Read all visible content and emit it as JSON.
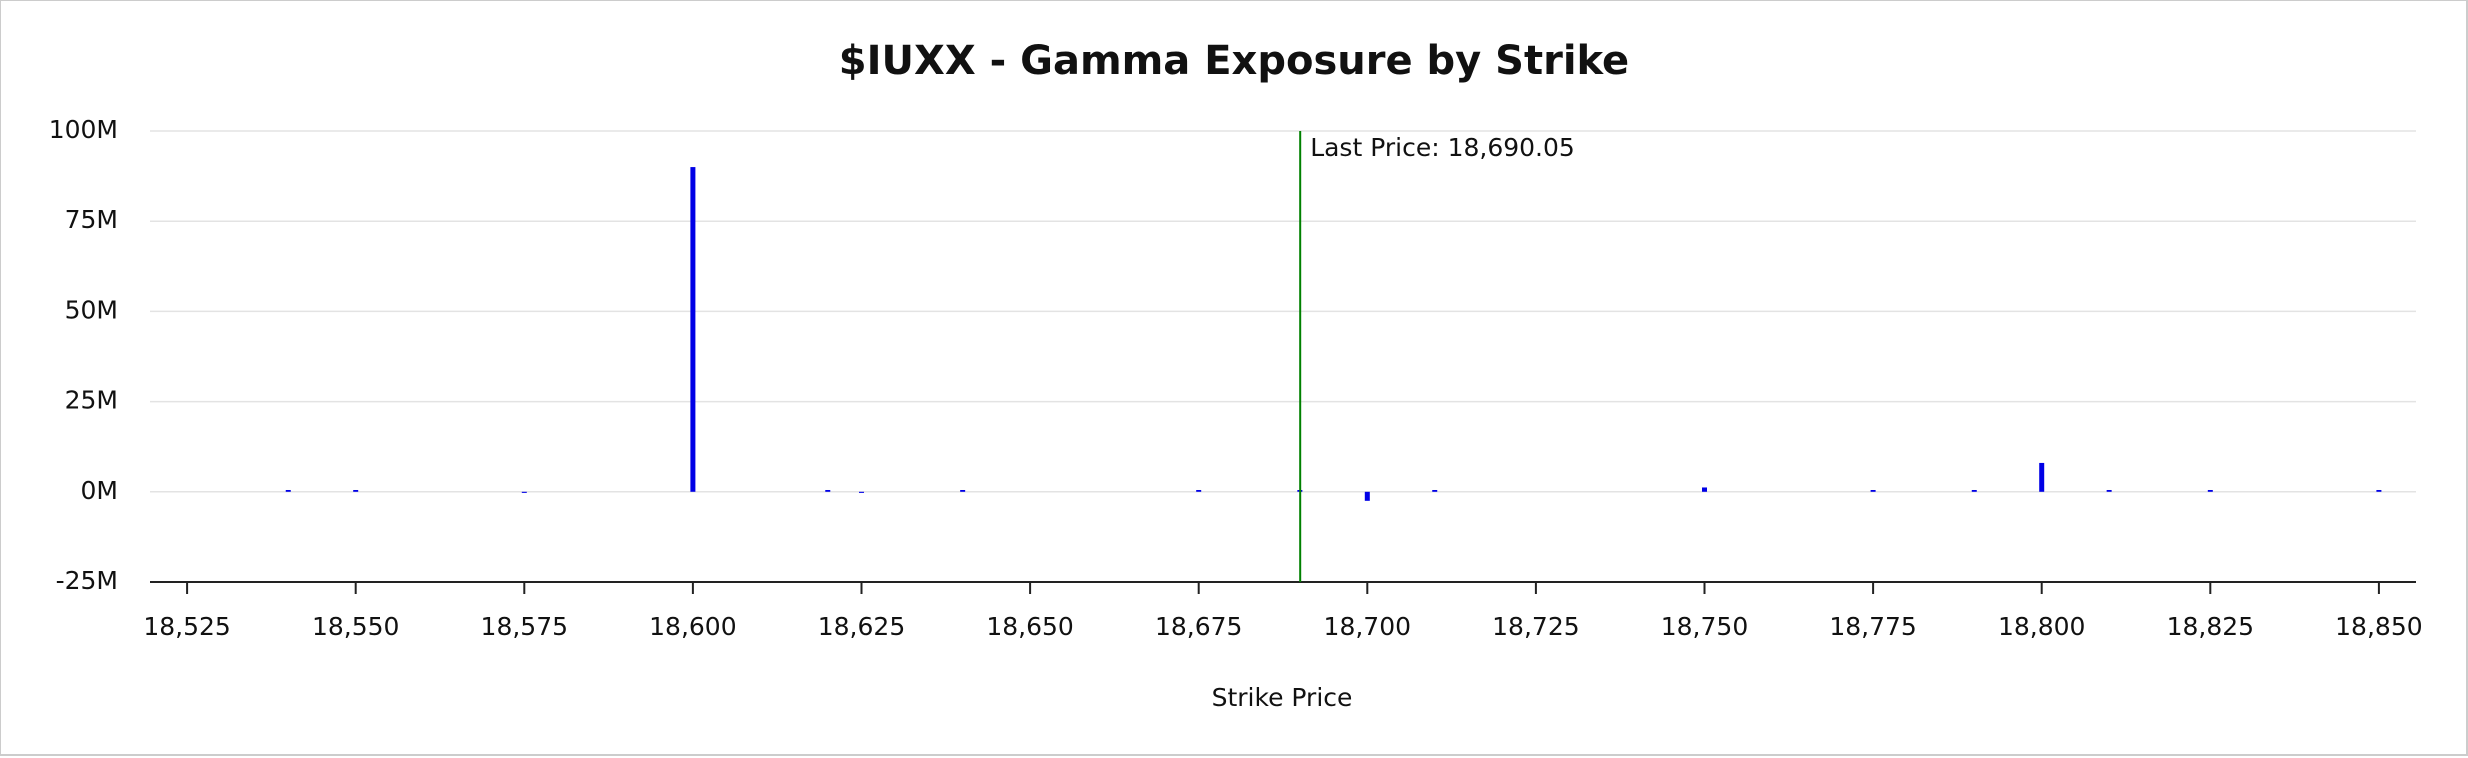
{
  "chart_data": {
    "type": "bar",
    "title": "$IUXX - Gamma Exposure by Strike",
    "xlabel": "Strike Price",
    "x": [
      18540,
      18550,
      18575,
      18600,
      18620,
      18625,
      18640,
      18675,
      18690,
      18700,
      18710,
      18750,
      18775,
      18790,
      18800,
      18810,
      18825,
      18850
    ],
    "values": [
      500000,
      500000,
      -300000,
      90000000,
      500000,
      -300000,
      500000,
      500000,
      500000,
      -2500000,
      500000,
      1200000,
      500000,
      500000,
      8000000,
      500000,
      500000,
      500000
    ],
    "color": "#0000e6",
    "xlim": [
      18519.5,
      18855.5
    ],
    "ylim": [
      -25000000,
      100000000
    ],
    "xticks": [
      {
        "value": 18525,
        "label": "18,525"
      },
      {
        "value": 18550,
        "label": "18,550"
      },
      {
        "value": 18575,
        "label": "18,575"
      },
      {
        "value": 18600,
        "label": "18,600"
      },
      {
        "value": 18625,
        "label": "18,625"
      },
      {
        "value": 18650,
        "label": "18,650"
      },
      {
        "value": 18675,
        "label": "18,675"
      },
      {
        "value": 18700,
        "label": "18,700"
      },
      {
        "value": 18725,
        "label": "18,725"
      },
      {
        "value": 18750,
        "label": "18,750"
      },
      {
        "value": 18775,
        "label": "18,775"
      },
      {
        "value": 18800,
        "label": "18,800"
      },
      {
        "value": 18825,
        "label": "18,825"
      },
      {
        "value": 18850,
        "label": "18,850"
      }
    ],
    "yticks": [
      {
        "value": -25000000,
        "label": "-25M"
      },
      {
        "value": 0,
        "label": "0M"
      },
      {
        "value": 25000000,
        "label": "25M"
      },
      {
        "value": 50000000,
        "label": "50M"
      },
      {
        "value": 75000000,
        "label": "75M"
      },
      {
        "value": 100000000,
        "label": "100M"
      }
    ],
    "grid": true,
    "annotations": [
      {
        "x": 18690.05,
        "label": "Last Price: 18,690.05",
        "color": "#008000"
      }
    ]
  }
}
